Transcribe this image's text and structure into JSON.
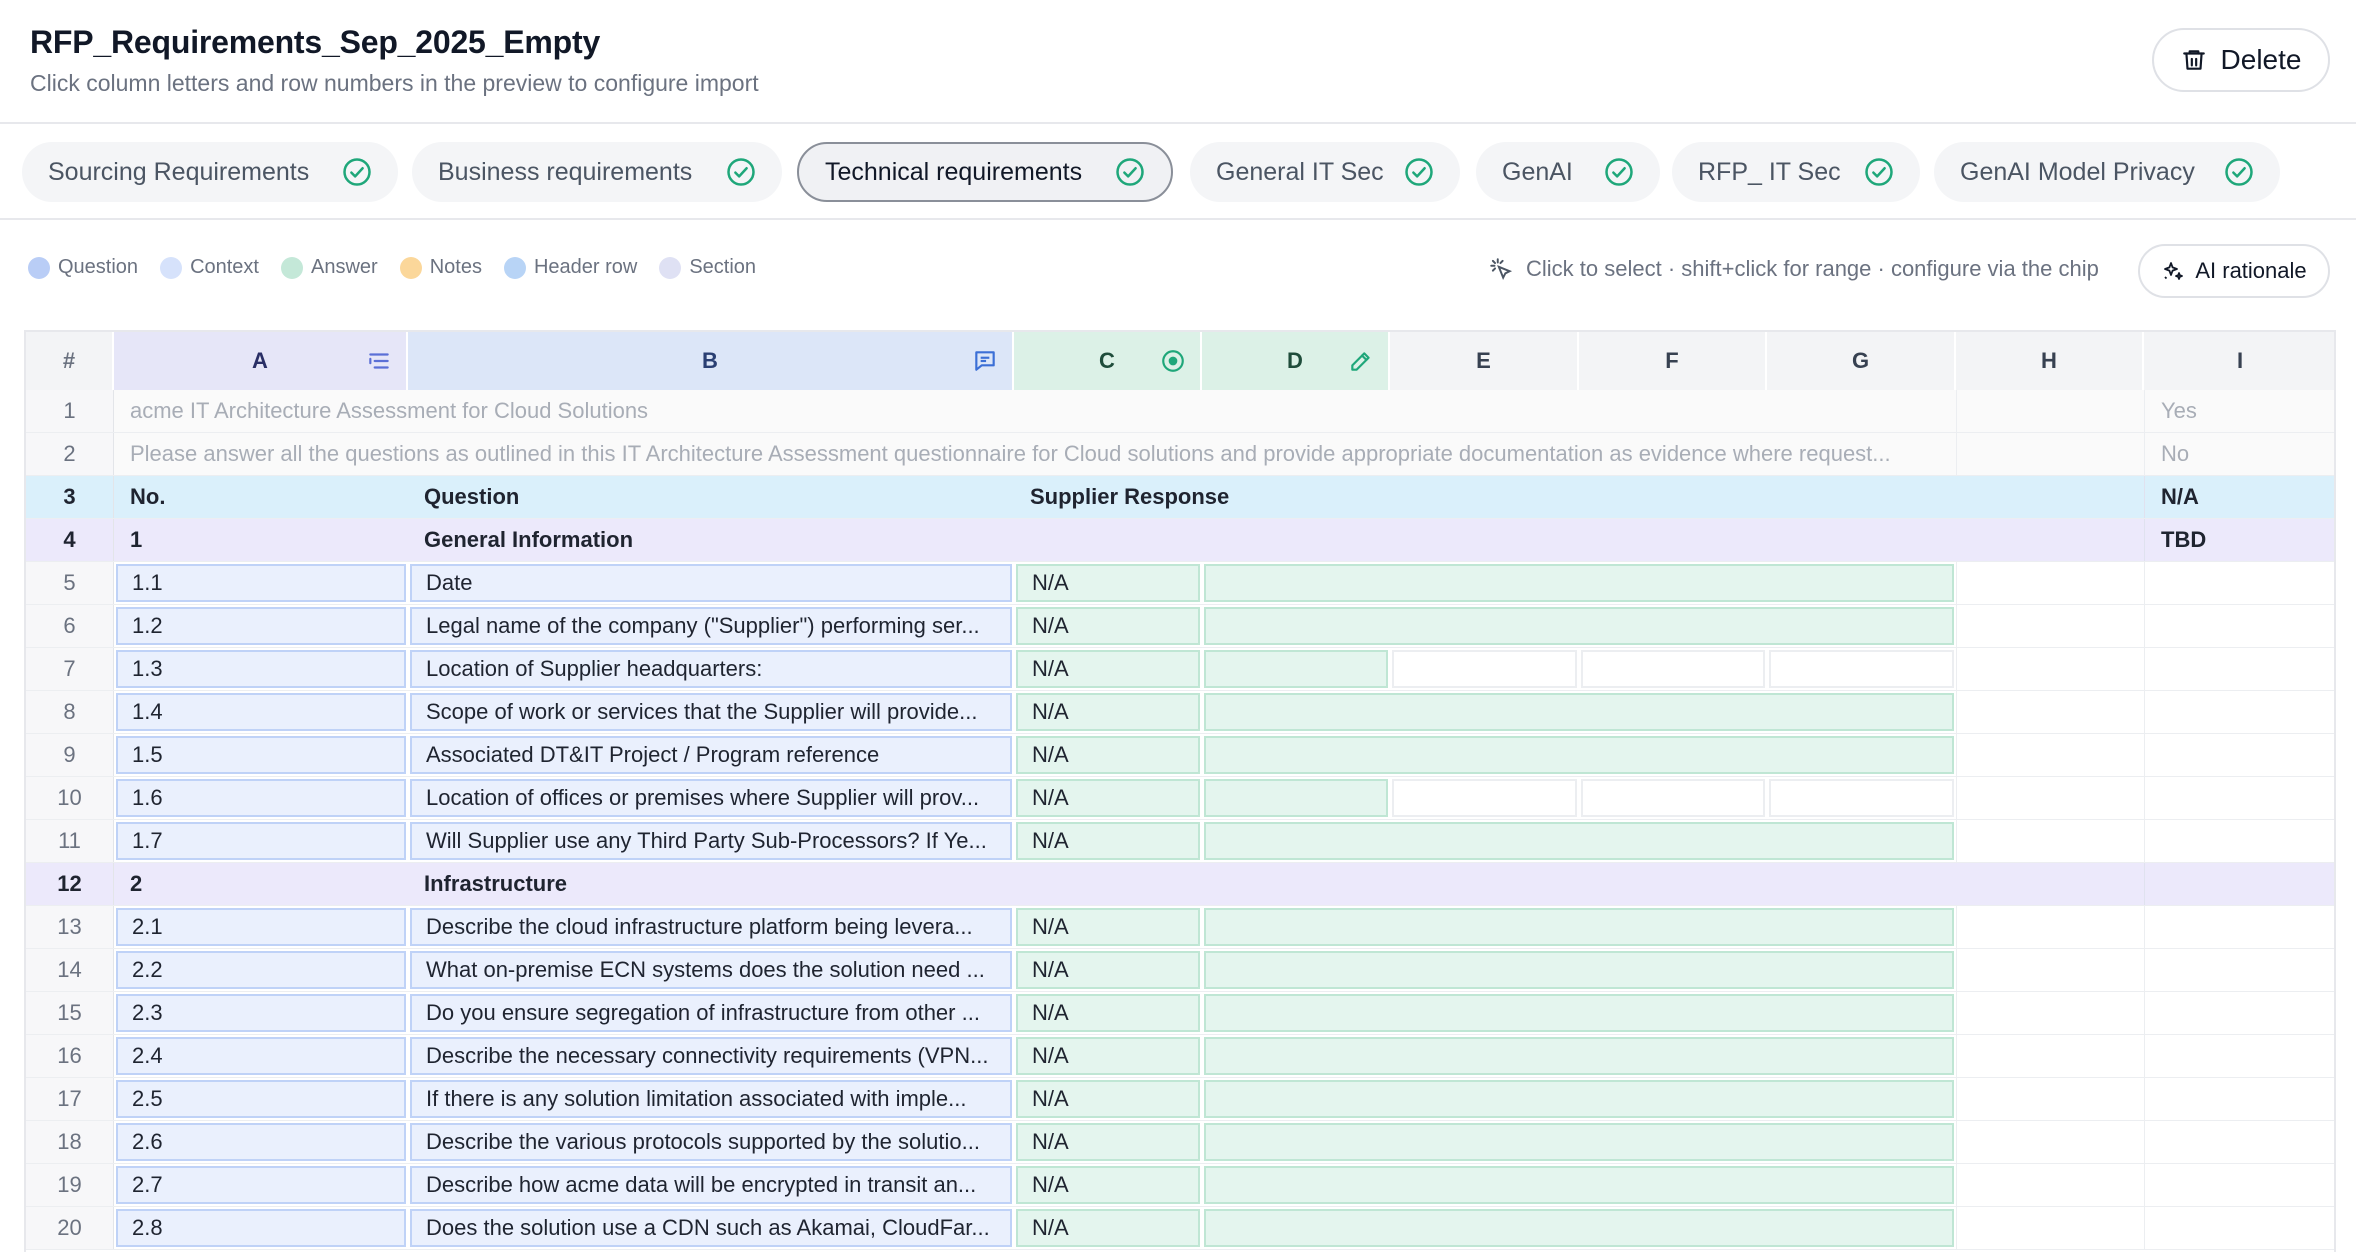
{
  "header": {
    "title": "RFP_Requirements_Sep_2025_Empty",
    "subtitle": "Click column letters and row numbers in the preview to configure import",
    "delete_label": "Delete"
  },
  "tabs": [
    {
      "label": "Sourcing Requirements",
      "active": false
    },
    {
      "label": "Business requirements",
      "active": false
    },
    {
      "label": "Technical requirements",
      "active": true
    },
    {
      "label": "General IT Sec",
      "active": false
    },
    {
      "label": "GenAI",
      "active": false
    },
    {
      "label": "RFP_ IT Sec",
      "active": false
    },
    {
      "label": "GenAI Model Privacy",
      "active": false
    }
  ],
  "legend": [
    {
      "label": "Question",
      "color": "#b9cdf6"
    },
    {
      "label": "Context",
      "color": "#d6e2fb"
    },
    {
      "label": "Answer",
      "color": "#c4e8d8"
    },
    {
      "label": "Notes",
      "color": "#fbd79a"
    },
    {
      "label": "Header row",
      "color": "#b8d4f6"
    },
    {
      "label": "Section",
      "color": "#dfe1f4"
    }
  ],
  "hint": "Click to select · shift+click for range · configure via the chip",
  "ai_button": "AI rationale",
  "grid": {
    "corner": "#",
    "columns": [
      "A",
      "B",
      "C",
      "D",
      "E",
      "F",
      "G",
      "H",
      "I"
    ],
    "rows": [
      {
        "n": "1",
        "kind": "muted",
        "A": "acme IT Architecture Assessment for Cloud Solutions",
        "I": "Yes"
      },
      {
        "n": "2",
        "kind": "muted",
        "A": "Please answer all the questions as outlined in this IT Architecture Assessment questionnaire for Cloud solutions and provide appropriate documentation as evidence where request...",
        "I": "No"
      },
      {
        "n": "3",
        "kind": "header",
        "A": "No.",
        "B": "Question",
        "C": "Supplier Response",
        "I": "N/A"
      },
      {
        "n": "4",
        "kind": "section",
        "A": "1",
        "B": "General Information",
        "I": "TBD"
      },
      {
        "n": "5",
        "kind": "data",
        "A": "1.1",
        "B": "Date",
        "C": "N/A",
        "dwide": true
      },
      {
        "n": "6",
        "kind": "data",
        "A": "1.2",
        "B": "Legal name of the company (\"Supplier\") performing ser...",
        "C": "N/A",
        "dwide": true
      },
      {
        "n": "7",
        "kind": "data",
        "A": "1.3",
        "B": "Location of Supplier headquarters:",
        "C": "N/A",
        "dwide": false
      },
      {
        "n": "8",
        "kind": "data",
        "A": "1.4",
        "B": "Scope of work or services that the Supplier will provide...",
        "C": "N/A",
        "dwide": true
      },
      {
        "n": "9",
        "kind": "data",
        "A": "1.5",
        "B": "Associated DT&IT Project / Program reference",
        "C": "N/A",
        "dwide": true
      },
      {
        "n": "10",
        "kind": "data",
        "A": "1.6",
        "B": "Location of offices or premises where Supplier will prov...",
        "C": "N/A",
        "dwide": false
      },
      {
        "n": "11",
        "kind": "data",
        "A": "1.7",
        "B": "Will Supplier use any Third Party Sub-Processors? If Ye...",
        "C": "N/A",
        "dwide": true
      },
      {
        "n": "12",
        "kind": "section",
        "A": "2",
        "B": "Infrastructure",
        "I": ""
      },
      {
        "n": "13",
        "kind": "data",
        "A": "2.1",
        "B": "Describe the cloud infrastructure platform being levera...",
        "C": "N/A",
        "dwide": true
      },
      {
        "n": "14",
        "kind": "data",
        "A": "2.2",
        "B": "What on-premise ECN systems does the solution need ...",
        "C": "N/A",
        "dwide": true
      },
      {
        "n": "15",
        "kind": "data",
        "A": "2.3",
        "B": "Do you ensure segregation of infrastructure from other ...",
        "C": "N/A",
        "dwide": true
      },
      {
        "n": "16",
        "kind": "data",
        "A": "2.4",
        "B": "Describe the necessary connectivity requirements (VPN...",
        "C": "N/A",
        "dwide": true
      },
      {
        "n": "17",
        "kind": "data",
        "A": "2.5",
        "B": "If there is any solution limitation associated with imple...",
        "C": "N/A",
        "dwide": true
      },
      {
        "n": "18",
        "kind": "data",
        "A": "2.6",
        "B": "Describe the various protocols supported by the solutio...",
        "C": "N/A",
        "dwide": true
      },
      {
        "n": "19",
        "kind": "data",
        "A": "2.7",
        "B": "Describe how acme data will be encrypted in transit an...",
        "C": "N/A",
        "dwide": true
      },
      {
        "n": "20",
        "kind": "data",
        "A": "2.8",
        "B": "Does the solution use a CDN such as Akamai, CloudFar...",
        "C": "N/A",
        "dwide": true
      }
    ]
  },
  "colors": {
    "question": "#eaf0fd",
    "answer": "#e4f5ee",
    "header_row": "#daf0fb",
    "section_row": "#ece9fb",
    "check": "#1fa77a"
  }
}
